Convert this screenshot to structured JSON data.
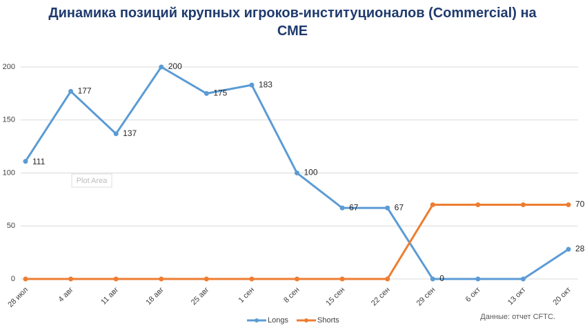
{
  "chart_data": {
    "type": "line",
    "title": "Динамика позиций крупных игроков-институционалов (Commercial) на СМЕ",
    "categories": [
      "28 июл",
      "4 авг",
      "11 авг",
      "18 авг",
      "25 авг",
      "1 сен",
      "8 сен",
      "15 сен",
      "22 сен",
      "29 сен",
      "6 окт",
      "13 окт",
      "20 окт"
    ],
    "series": [
      {
        "name": "Longs",
        "color": "#5b9bd5",
        "values": [
          111,
          177,
          137,
          200,
          175,
          183,
          100,
          67,
          67,
          0,
          0,
          0,
          28
        ],
        "value_labels": [
          "111",
          "177",
          "137",
          "200",
          "175",
          "183",
          "100",
          "67",
          "67",
          "0",
          null,
          null,
          "28"
        ]
      },
      {
        "name": "Shorts",
        "color": "#ed7d31",
        "values": [
          0,
          0,
          0,
          0,
          0,
          0,
          0,
          0,
          0,
          70,
          70,
          70,
          70
        ],
        "value_labels": [
          null,
          null,
          null,
          null,
          null,
          null,
          null,
          null,
          null,
          null,
          null,
          null,
          "70"
        ]
      }
    ],
    "ylim": [
      0,
      200
    ],
    "yticks": [
      0,
      50,
      100,
      150,
      200
    ],
    "grid": true,
    "legend": "bottom",
    "tooltip": "Plot Area",
    "source": "Данные: отчет CFTC."
  }
}
